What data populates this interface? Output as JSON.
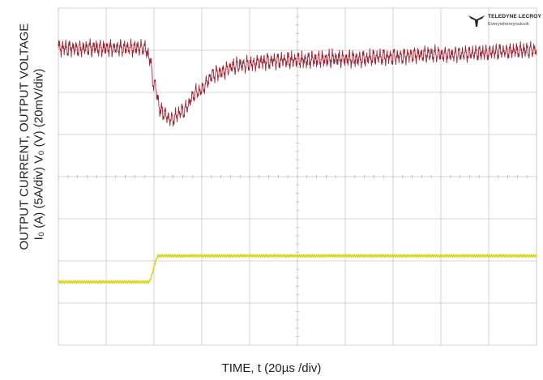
{
  "figure": {
    "ylabel_line1": "OUTPUT CURRENT,          OUTPUT VOLTAGE",
    "ylabel_line2": "I₀ (A)  (5A/div)          V₀ (V) (20mV/div)",
    "xlabel": "TIME, t (20µs /div)"
  },
  "logo": {
    "brand": "TELEDYNE LECROY",
    "tagline": "Everywhereyoulook",
    "icon": "teledyne-eagle-icon"
  },
  "colors": {
    "voltage_trace": "#9b1b2c",
    "current_trace": "#d8d820",
    "grid": "#c8c8c8",
    "background": "#ffffff"
  },
  "chart_data": {
    "type": "line",
    "grid": true,
    "grid_divisions": {
      "x": 10,
      "y": 8
    },
    "x_units_per_div": "20µs",
    "series": [
      {
        "name": "",
        "units_per_div": "20mV",
        "x_div": [
          0,
          1.8,
          1.9,
          2.0,
          2.15,
          2.35,
          2.6,
          2.9,
          3.3,
          3.8,
          4.5,
          6.0,
          8.0,
          10.0
        ],
        "y_div": [
          3.05,
          3.05,
          2.85,
          2.2,
          1.55,
          1.35,
          1.55,
          2.0,
          2.45,
          2.65,
          2.75,
          2.8,
          2.9,
          3.0
        ],
        "ripple_div": 0.22
      },
      {
        "name": "",
        "units_per_div": "5A",
        "x_div": [
          0,
          1.88,
          2.1,
          2.2,
          10.0
        ],
        "y_div": [
          -2.5,
          -2.5,
          -1.88,
          -1.88,
          -1.88
        ]
      }
    ]
  }
}
